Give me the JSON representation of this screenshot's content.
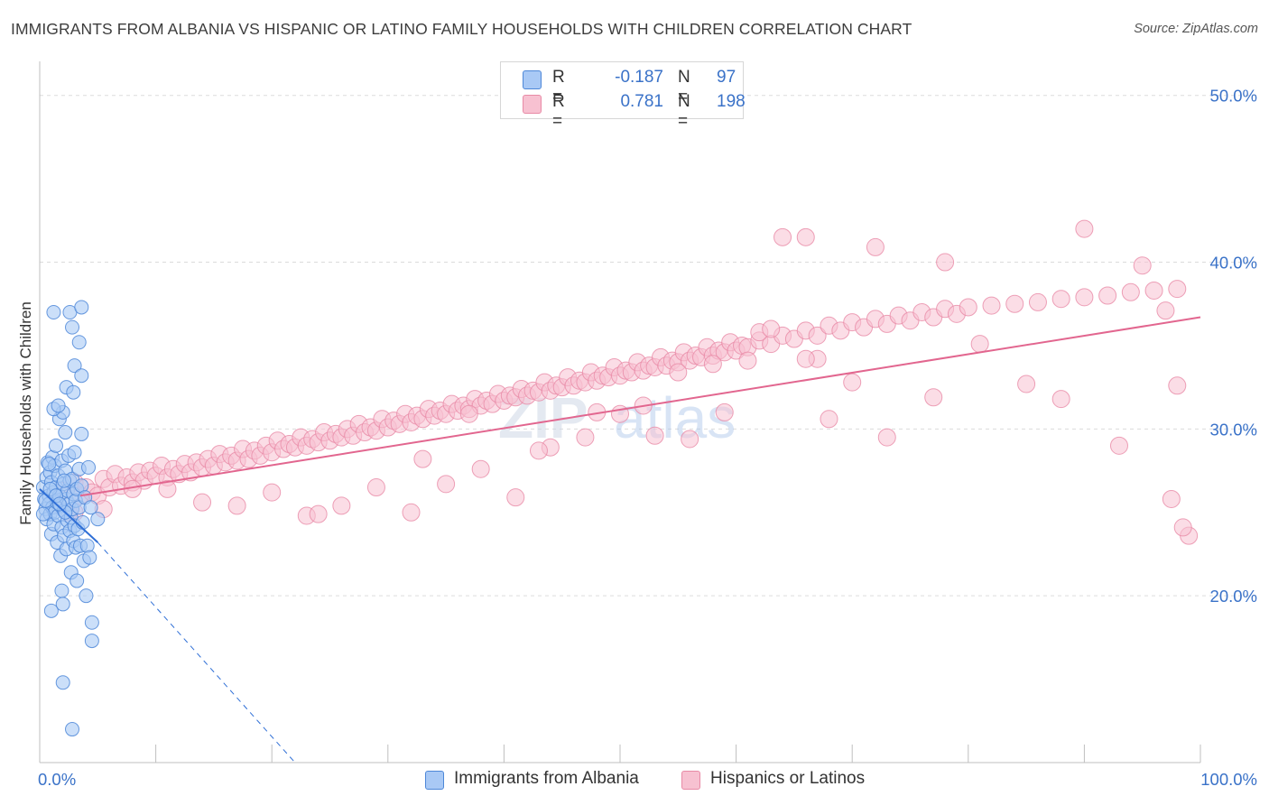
{
  "title": "IMMIGRANTS FROM ALBANIA VS HISPANIC OR LATINO FAMILY HOUSEHOLDS WITH CHILDREN CORRELATION CHART",
  "source": "Source: ZipAtlas.com",
  "watermark": "ZIPatlas",
  "colors": {
    "blue_fill": "#a9c9f5",
    "blue_stroke": "#4d87d8",
    "blue_line": "#2f6fd6",
    "pink_fill": "#f7c1d1",
    "pink_stroke": "#e88aa6",
    "pink_line": "#e2668f",
    "axis_text": "#3a72c8",
    "grid": "#dcdcdc"
  },
  "legend": {
    "rows": [
      {
        "r_label": "R =",
        "r_value": "-0.187",
        "n_label": "N =",
        "n_value": "97"
      },
      {
        "r_label": "R =",
        "r_value": "0.781",
        "n_label": "N =",
        "n_value": "198"
      }
    ]
  },
  "bottom_legend": {
    "items": [
      {
        "label": "Immigrants from Albania"
      },
      {
        "label": "Hispanics or Latinos"
      }
    ]
  },
  "chart_data": {
    "type": "scatter",
    "title": "IMMIGRANTS FROM ALBANIA VS HISPANIC OR LATINO FAMILY HOUSEHOLDS WITH CHILDREN CORRELATION CHART",
    "xlabel": "",
    "ylabel": "Family Households with Children",
    "x_tick_labels": [
      "0.0%",
      "100.0%"
    ],
    "y_tick_labels": [
      "20.0%",
      "30.0%",
      "40.0%",
      "50.0%"
    ],
    "y_ticks": [
      20,
      30,
      40,
      50
    ],
    "xlim": [
      0,
      100
    ],
    "ylim": [
      10,
      51.5
    ],
    "grid": true,
    "legend_position": "top-center",
    "series": [
      {
        "name": "Immigrants from Albania",
        "r": -0.187,
        "n": 97,
        "trend": {
          "x0": 0,
          "y0": 26.4,
          "x1": 5.0,
          "y1": 23.2,
          "x_dash_end": 22.0,
          "y_dash_end": 10.0
        },
        "points": [
          [
            0.3,
            26.5
          ],
          [
            0.4,
            25.8
          ],
          [
            0.5,
            25.2
          ],
          [
            0.6,
            27.1
          ],
          [
            0.6,
            24.6
          ],
          [
            0.7,
            28.0
          ],
          [
            0.8,
            26.0
          ],
          [
            0.8,
            25.5
          ],
          [
            0.9,
            24.9
          ],
          [
            0.9,
            27.4
          ],
          [
            1.0,
            26.8
          ],
          [
            1.0,
            23.7
          ],
          [
            1.1,
            25.3
          ],
          [
            1.1,
            28.3
          ],
          [
            1.2,
            26.2
          ],
          [
            1.2,
            24.3
          ],
          [
            1.3,
            27.8
          ],
          [
            1.3,
            25.0
          ],
          [
            1.4,
            26.5
          ],
          [
            1.4,
            29.0
          ],
          [
            1.5,
            25.6
          ],
          [
            1.5,
            23.2
          ],
          [
            1.6,
            27.2
          ],
          [
            1.6,
            24.8
          ],
          [
            1.7,
            26.0
          ],
          [
            1.7,
            30.6
          ],
          [
            1.8,
            25.4
          ],
          [
            1.8,
            22.4
          ],
          [
            1.9,
            28.1
          ],
          [
            1.9,
            24.1
          ],
          [
            2.0,
            26.7
          ],
          [
            2.0,
            31.0
          ],
          [
            2.1,
            25.1
          ],
          [
            2.1,
            23.6
          ],
          [
            2.2,
            27.5
          ],
          [
            2.2,
            29.8
          ],
          [
            2.3,
            25.8
          ],
          [
            2.3,
            22.8
          ],
          [
            2.4,
            26.3
          ],
          [
            2.4,
            24.5
          ],
          [
            2.5,
            28.4
          ],
          [
            2.5,
            25.5
          ],
          [
            2.6,
            23.9
          ],
          [
            2.6,
            26.9
          ],
          [
            2.7,
            24.7
          ],
          [
            2.7,
            21.4
          ],
          [
            2.8,
            27.0
          ],
          [
            2.8,
            25.2
          ],
          [
            2.9,
            23.3
          ],
          [
            2.9,
            26.1
          ],
          [
            3.0,
            28.6
          ],
          [
            3.0,
            24.2
          ],
          [
            3.1,
            25.7
          ],
          [
            3.1,
            22.9
          ],
          [
            3.2,
            26.4
          ],
          [
            3.2,
            20.9
          ],
          [
            3.3,
            24.0
          ],
          [
            3.4,
            27.6
          ],
          [
            3.4,
            25.3
          ],
          [
            3.5,
            23.0
          ],
          [
            3.6,
            29.7
          ],
          [
            3.6,
            26.6
          ],
          [
            3.7,
            24.4
          ],
          [
            3.8,
            22.1
          ],
          [
            3.9,
            25.9
          ],
          [
            4.0,
            20.0
          ],
          [
            4.1,
            23.0
          ],
          [
            4.2,
            27.7
          ],
          [
            4.3,
            22.3
          ],
          [
            4.5,
            18.4
          ],
          [
            4.5,
            17.3
          ],
          [
            1.2,
            37.0
          ],
          [
            2.6,
            37.0
          ],
          [
            2.8,
            36.1
          ],
          [
            3.6,
            37.3
          ],
          [
            3.4,
            35.2
          ],
          [
            2.3,
            32.5
          ],
          [
            3.0,
            33.8
          ],
          [
            3.6,
            33.2
          ],
          [
            2.9,
            32.2
          ],
          [
            1.0,
            19.1
          ],
          [
            1.9,
            20.3
          ],
          [
            2.0,
            19.5
          ],
          [
            2.0,
            14.8
          ],
          [
            2.8,
            12.0
          ],
          [
            5.0,
            24.6
          ],
          [
            0.8,
            27.9
          ],
          [
            1.2,
            31.2
          ],
          [
            1.6,
            31.4
          ],
          [
            2.2,
            25.0
          ],
          [
            0.5,
            25.7
          ],
          [
            0.9,
            26.4
          ],
          [
            1.4,
            26.0
          ],
          [
            1.7,
            25.5
          ],
          [
            2.1,
            26.9
          ],
          [
            4.4,
            25.3
          ],
          [
            0.3,
            24.9
          ]
        ]
      },
      {
        "name": "Hispanics or Latinos",
        "r": 0.781,
        "n": 198,
        "trend": {
          "x0": 3.5,
          "y0": 26.0,
          "x1": 100,
          "y1": 36.7
        },
        "points": [
          [
            1.5,
            25.5
          ],
          [
            2.0,
            26.3
          ],
          [
            2.5,
            25.0
          ],
          [
            3.0,
            26.8
          ],
          [
            3.5,
            26.0
          ],
          [
            4.0,
            26.5
          ],
          [
            4.5,
            26.2
          ],
          [
            5.0,
            26.0
          ],
          [
            5.5,
            27.0
          ],
          [
            6.0,
            26.5
          ],
          [
            6.5,
            27.3
          ],
          [
            7.0,
            26.6
          ],
          [
            7.5,
            27.1
          ],
          [
            8.0,
            26.8
          ],
          [
            8.5,
            27.4
          ],
          [
            9.0,
            26.9
          ],
          [
            9.5,
            27.5
          ],
          [
            10.0,
            27.2
          ],
          [
            10.5,
            27.8
          ],
          [
            11.0,
            27.1
          ],
          [
            11.5,
            27.6
          ],
          [
            12.0,
            27.3
          ],
          [
            12.5,
            27.9
          ],
          [
            13.0,
            27.4
          ],
          [
            13.5,
            28.0
          ],
          [
            14.0,
            27.7
          ],
          [
            14.5,
            28.2
          ],
          [
            15.0,
            27.8
          ],
          [
            15.5,
            28.5
          ],
          [
            16.0,
            28.0
          ],
          [
            16.5,
            28.4
          ],
          [
            17.0,
            28.1
          ],
          [
            17.5,
            28.8
          ],
          [
            18.0,
            28.2
          ],
          [
            18.5,
            28.7
          ],
          [
            19.0,
            28.4
          ],
          [
            19.5,
            29.0
          ],
          [
            20.0,
            28.6
          ],
          [
            20.5,
            29.3
          ],
          [
            21.0,
            28.8
          ],
          [
            21.5,
            29.1
          ],
          [
            22.0,
            28.9
          ],
          [
            22.5,
            29.5
          ],
          [
            23.0,
            29.0
          ],
          [
            23.5,
            29.4
          ],
          [
            24.0,
            29.2
          ],
          [
            24.5,
            29.8
          ],
          [
            25.0,
            29.3
          ],
          [
            25.5,
            29.7
          ],
          [
            26.0,
            29.5
          ],
          [
            26.5,
            30.0
          ],
          [
            27.0,
            29.6
          ],
          [
            27.5,
            30.3
          ],
          [
            28.0,
            29.8
          ],
          [
            28.5,
            30.1
          ],
          [
            29.0,
            29.9
          ],
          [
            29.5,
            30.6
          ],
          [
            30.0,
            30.1
          ],
          [
            30.5,
            30.5
          ],
          [
            31.0,
            30.3
          ],
          [
            31.5,
            30.9
          ],
          [
            32.0,
            30.4
          ],
          [
            32.5,
            30.8
          ],
          [
            33.0,
            30.6
          ],
          [
            33.5,
            31.2
          ],
          [
            34.0,
            30.8
          ],
          [
            34.5,
            31.1
          ],
          [
            35.0,
            30.9
          ],
          [
            35.5,
            31.5
          ],
          [
            36.0,
            31.1
          ],
          [
            36.5,
            31.4
          ],
          [
            37.0,
            31.2
          ],
          [
            37.5,
            31.8
          ],
          [
            38.0,
            31.4
          ],
          [
            38.5,
            31.7
          ],
          [
            39.0,
            31.5
          ],
          [
            39.5,
            32.1
          ],
          [
            40.0,
            31.7
          ],
          [
            40.5,
            32.0
          ],
          [
            41.0,
            31.9
          ],
          [
            41.5,
            32.4
          ],
          [
            42.0,
            32.0
          ],
          [
            42.5,
            32.3
          ],
          [
            43.0,
            32.2
          ],
          [
            43.5,
            32.8
          ],
          [
            44.0,
            32.3
          ],
          [
            44.5,
            32.6
          ],
          [
            45.0,
            32.5
          ],
          [
            45.5,
            33.1
          ],
          [
            46.0,
            32.6
          ],
          [
            46.5,
            32.9
          ],
          [
            47.0,
            32.8
          ],
          [
            47.5,
            33.4
          ],
          [
            48.0,
            32.9
          ],
          [
            48.5,
            33.2
          ],
          [
            49.0,
            33.1
          ],
          [
            49.5,
            33.7
          ],
          [
            50.0,
            33.2
          ],
          [
            50.5,
            33.5
          ],
          [
            51.0,
            33.4
          ],
          [
            51.5,
            34.0
          ],
          [
            52.0,
            33.5
          ],
          [
            52.5,
            33.8
          ],
          [
            53.0,
            33.7
          ],
          [
            53.5,
            34.3
          ],
          [
            54.0,
            33.8
          ],
          [
            54.5,
            34.1
          ],
          [
            55.0,
            34.0
          ],
          [
            55.5,
            34.6
          ],
          [
            56.0,
            34.1
          ],
          [
            56.5,
            34.4
          ],
          [
            57.0,
            34.3
          ],
          [
            57.5,
            34.9
          ],
          [
            58.0,
            34.4
          ],
          [
            58.5,
            34.7
          ],
          [
            59.0,
            34.6
          ],
          [
            59.5,
            35.2
          ],
          [
            60.0,
            34.7
          ],
          [
            60.5,
            35.0
          ],
          [
            61.0,
            34.9
          ],
          [
            62.0,
            35.3
          ],
          [
            63.0,
            35.1
          ],
          [
            64.0,
            35.6
          ],
          [
            65.0,
            35.4
          ],
          [
            66.0,
            35.9
          ],
          [
            67.0,
            35.6
          ],
          [
            68.0,
            36.2
          ],
          [
            69.0,
            35.9
          ],
          [
            70.0,
            36.4
          ],
          [
            71.0,
            36.1
          ],
          [
            72.0,
            36.6
          ],
          [
            73.0,
            36.3
          ],
          [
            74.0,
            36.8
          ],
          [
            75.0,
            36.5
          ],
          [
            76.0,
            37.0
          ],
          [
            77.0,
            36.7
          ],
          [
            78.0,
            37.2
          ],
          [
            79.0,
            36.9
          ],
          [
            80.0,
            37.3
          ],
          [
            82.0,
            37.4
          ],
          [
            84.0,
            37.5
          ],
          [
            86.0,
            37.6
          ],
          [
            88.0,
            37.8
          ],
          [
            90.0,
            37.9
          ],
          [
            92.0,
            38.0
          ],
          [
            94.0,
            38.2
          ],
          [
            96.0,
            38.3
          ],
          [
            98.0,
            38.4
          ],
          [
            64.0,
            41.5
          ],
          [
            66.0,
            41.5
          ],
          [
            72.0,
            40.9
          ],
          [
            78.0,
            40.0
          ],
          [
            90.0,
            42.0
          ],
          [
            95.0,
            39.8
          ],
          [
            97.0,
            37.1
          ],
          [
            98.0,
            32.6
          ],
          [
            97.5,
            25.8
          ],
          [
            99.0,
            23.6
          ],
          [
            98.5,
            24.1
          ],
          [
            93.0,
            29.0
          ],
          [
            88.0,
            31.8
          ],
          [
            85.0,
            32.7
          ],
          [
            81.0,
            35.1
          ],
          [
            77.0,
            31.9
          ],
          [
            73.0,
            29.5
          ],
          [
            70.0,
            32.8
          ],
          [
            67.0,
            34.2
          ],
          [
            62.0,
            35.8
          ],
          [
            59.0,
            31.0
          ],
          [
            56.0,
            29.4
          ],
          [
            53.0,
            29.6
          ],
          [
            50.0,
            30.9
          ],
          [
            47.0,
            29.5
          ],
          [
            44.0,
            28.9
          ],
          [
            41.0,
            25.9
          ],
          [
            38.0,
            27.6
          ],
          [
            35.0,
            26.7
          ],
          [
            32.0,
            25.0
          ],
          [
            29.0,
            26.5
          ],
          [
            26.0,
            25.4
          ],
          [
            23.0,
            24.8
          ],
          [
            20.0,
            26.2
          ],
          [
            17.0,
            25.4
          ],
          [
            14.0,
            25.6
          ],
          [
            11.0,
            26.4
          ],
          [
            8.0,
            26.4
          ],
          [
            5.5,
            25.2
          ],
          [
            3.0,
            25.0
          ],
          [
            24.0,
            24.9
          ],
          [
            33.0,
            28.2
          ],
          [
            37.0,
            30.9
          ],
          [
            43.0,
            28.7
          ],
          [
            48.0,
            31.0
          ],
          [
            52.0,
            31.4
          ],
          [
            55.0,
            33.4
          ],
          [
            58.0,
            33.9
          ],
          [
            61.0,
            34.1
          ],
          [
            63.0,
            36.0
          ],
          [
            66.0,
            34.2
          ],
          [
            68.0,
            30.6
          ]
        ]
      }
    ]
  }
}
